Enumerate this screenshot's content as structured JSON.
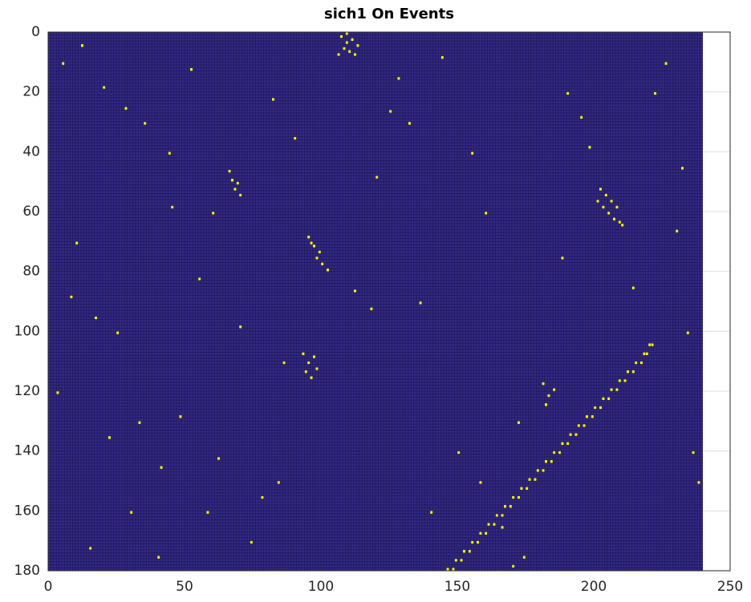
{
  "chart_data": {
    "type": "scatter",
    "title": "sich1 On Events",
    "image_size": [
      240,
      180
    ],
    "background_color": "#352a87",
    "color": "#f9fb0e",
    "grid": true,
    "xlim": [
      0,
      250
    ],
    "ylim": [
      0,
      180
    ],
    "y_reversed": true,
    "xticks": [
      0,
      50,
      100,
      150,
      200,
      250
    ],
    "yticks": [
      0,
      20,
      40,
      60,
      80,
      100,
      120,
      140,
      160,
      180
    ],
    "x": [
      146,
      148,
      149,
      151,
      152,
      154,
      155,
      157,
      158,
      160,
      161,
      163,
      164,
      166,
      167,
      169,
      170,
      172,
      173,
      175,
      176,
      178,
      179,
      181,
      182,
      184,
      185,
      187,
      188,
      190,
      191,
      193,
      194,
      196,
      197,
      199,
      200,
      202,
      203,
      205,
      206,
      208,
      209,
      211,
      212,
      214,
      215,
      217,
      218,
      219,
      220,
      221,
      107,
      109,
      111,
      108,
      110,
      112,
      106,
      109,
      113,
      202,
      204,
      206,
      203,
      205,
      207,
      209,
      201,
      208,
      210,
      95,
      97,
      99,
      98,
      100,
      102,
      96,
      66,
      67,
      68,
      70,
      69,
      93,
      95,
      97,
      94,
      96,
      98,
      181,
      183,
      185,
      182,
      5,
      12,
      20,
      28,
      35,
      44,
      52,
      60,
      8,
      17,
      25,
      33,
      41,
      58,
      74,
      82,
      90,
      120,
      128,
      136,
      150,
      158,
      166,
      174,
      190,
      198,
      214,
      226,
      232,
      238,
      3,
      15,
      30,
      48,
      62,
      78,
      86,
      118,
      132,
      144,
      160,
      172,
      188,
      222,
      234,
      10,
      22,
      40,
      55,
      70,
      84,
      125,
      140,
      155,
      170,
      195,
      230,
      236,
      45,
      112
    ],
    "y": [
      179,
      179,
      176,
      176,
      173,
      173,
      170,
      170,
      167,
      167,
      164,
      164,
      161,
      161,
      158,
      158,
      155,
      155,
      152,
      152,
      149,
      149,
      146,
      146,
      143,
      143,
      140,
      140,
      137,
      137,
      134,
      134,
      131,
      131,
      128,
      128,
      125,
      125,
      122,
      122,
      119,
      119,
      116,
      116,
      113,
      113,
      110,
      110,
      107,
      107,
      104,
      104,
      1,
      3,
      2,
      5,
      6,
      7,
      7,
      0,
      4,
      52,
      54,
      56,
      58,
      60,
      62,
      63,
      56,
      58,
      64,
      68,
      71,
      73,
      75,
      77,
      79,
      70,
      46,
      49,
      52,
      54,
      50,
      107,
      110,
      108,
      113,
      115,
      112,
      117,
      121,
      119,
      124,
      10,
      4,
      18,
      25,
      30,
      40,
      12,
      60,
      88,
      95,
      100,
      130,
      145,
      160,
      170,
      22,
      35,
      48,
      15,
      90,
      140,
      150,
      165,
      175,
      20,
      38,
      85,
      10,
      45,
      150,
      120,
      172,
      160,
      128,
      142,
      155,
      110,
      92,
      30,
      8,
      60,
      130,
      75,
      20,
      100,
      70,
      135,
      175,
      82,
      98,
      150,
      26,
      160,
      40,
      178,
      28,
      66,
      140,
      58,
      86
    ]
  }
}
